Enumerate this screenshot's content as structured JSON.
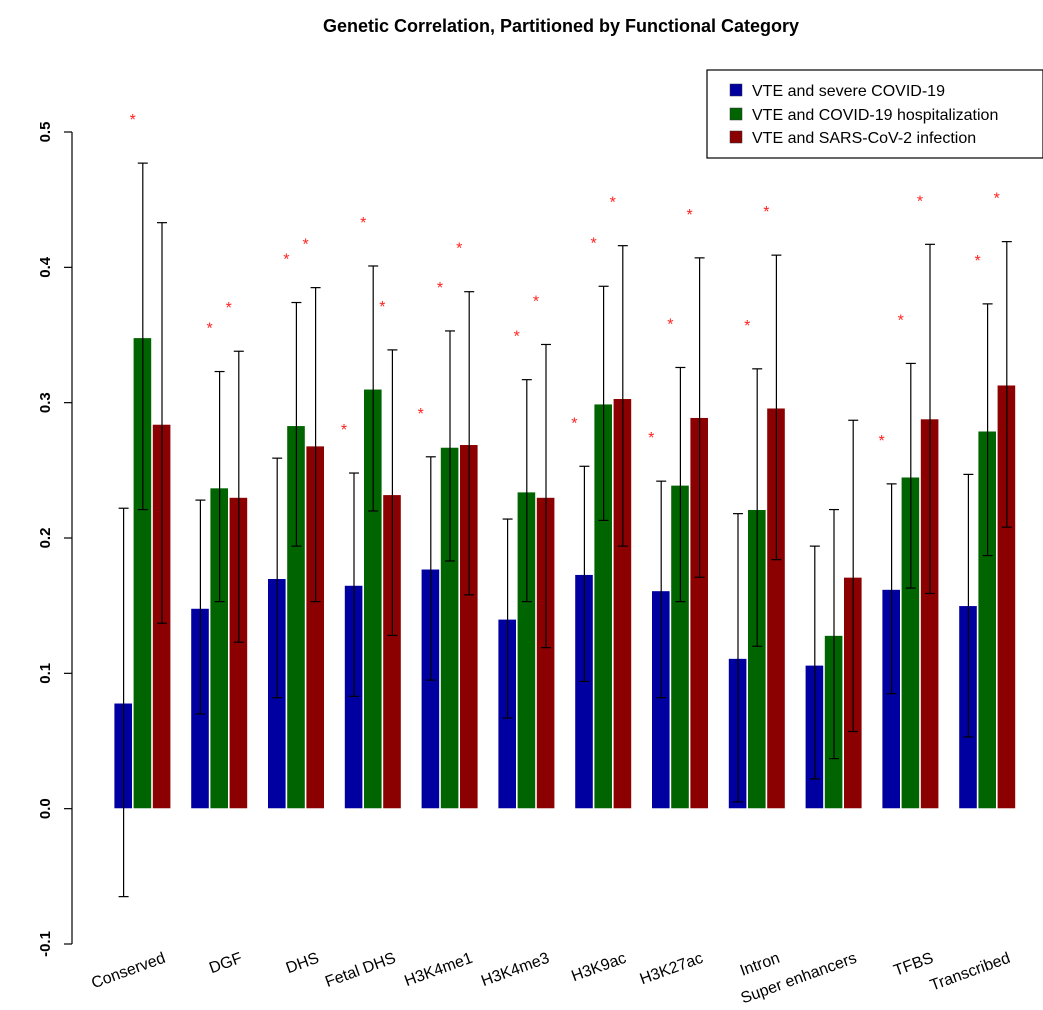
{
  "chart_data": {
    "type": "bar",
    "title": "Genetic Correlation, Partitioned by Functional Category",
    "xlabel": "",
    "ylabel": "",
    "ylim": [
      -0.1,
      0.5
    ],
    "yticks": [
      "-0.1",
      "0.0",
      "0.1",
      "0.2",
      "0.3",
      "0.4",
      "0.5"
    ],
    "ytick_values": [
      -0.1,
      0.0,
      0.1,
      0.2,
      0.3,
      0.4,
      0.5
    ],
    "grid": false,
    "legend_position": "top-right",
    "categories": [
      "Conserved",
      "DGF",
      "DHS",
      "Fetal DHS",
      "H3K4me1",
      "H3K4me3",
      "H3K9ac",
      "H3K27ac",
      "Intron",
      "Super enhancers",
      "TFBS",
      "Transcribed"
    ],
    "series": [
      {
        "name": "VTE and severe COVID-19",
        "color": "#0000a0",
        "values": [
          0.078,
          0.148,
          0.17,
          0.165,
          0.177,
          0.14,
          0.173,
          0.161,
          0.111,
          0.106,
          0.162,
          0.15
        ],
        "ci_lower": [
          -0.065,
          0.07,
          0.082,
          0.083,
          0.095,
          0.067,
          0.094,
          0.082,
          0.005,
          0.022,
          0.085,
          0.053
        ],
        "ci_upper": [
          0.222,
          0.228,
          0.259,
          0.248,
          0.26,
          0.214,
          0.253,
          0.242,
          0.218,
          0.194,
          0.24,
          0.247
        ],
        "significant": [
          false,
          false,
          false,
          true,
          true,
          false,
          true,
          true,
          false,
          false,
          true,
          false
        ]
      },
      {
        "name": "VTE and COVID-19 hospitalization",
        "color": "#006400",
        "values": [
          0.348,
          0.237,
          0.283,
          0.31,
          0.267,
          0.234,
          0.299,
          0.239,
          0.221,
          0.128,
          0.245,
          0.279
        ],
        "ci_lower": [
          0.221,
          0.153,
          0.194,
          0.22,
          0.183,
          0.153,
          0.213,
          0.153,
          0.12,
          0.037,
          0.163,
          0.187
        ],
        "ci_upper": [
          0.477,
          0.323,
          0.374,
          0.401,
          0.353,
          0.317,
          0.386,
          0.326,
          0.325,
          0.221,
          0.329,
          0.373
        ],
        "significant": [
          true,
          true,
          true,
          true,
          true,
          true,
          true,
          true,
          true,
          false,
          true,
          true
        ]
      },
      {
        "name": "VTE and SARS-CoV-2 infection",
        "color": "#8b0000",
        "values": [
          0.284,
          0.23,
          0.268,
          0.232,
          0.269,
          0.23,
          0.303,
          0.289,
          0.296,
          0.171,
          0.288,
          0.313
        ],
        "ci_lower": [
          0.137,
          0.123,
          0.153,
          0.128,
          0.158,
          0.119,
          0.194,
          0.171,
          0.184,
          0.057,
          0.159,
          0.208
        ],
        "ci_upper": [
          0.433,
          0.338,
          0.385,
          0.339,
          0.382,
          0.343,
          0.416,
          0.407,
          0.409,
          0.287,
          0.417,
          0.419
        ],
        "significant": [
          false,
          true,
          true,
          true,
          true,
          true,
          true,
          true,
          true,
          false,
          true,
          true
        ]
      }
    ],
    "significance_marker": "*"
  }
}
